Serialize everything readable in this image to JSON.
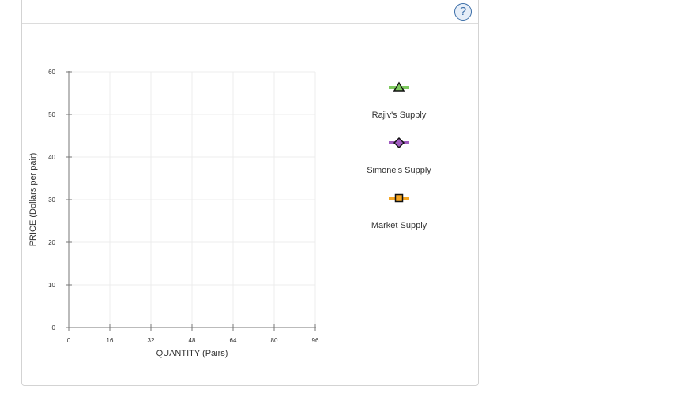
{
  "help": {
    "label": "?"
  },
  "chart_data": {
    "type": "line",
    "title": "",
    "xlabel": "QUANTITY (Pairs)",
    "ylabel": "PRICE (Dollars per pair)",
    "xlim": [
      0,
      96
    ],
    "ylim": [
      0,
      60
    ],
    "x_ticks": [
      0,
      16,
      32,
      48,
      64,
      80,
      96
    ],
    "y_ticks": [
      0,
      10,
      20,
      30,
      40,
      50,
      60
    ],
    "grid": true,
    "legend_placement": "right",
    "series": [
      {
        "name": "Rajiv's Supply",
        "marker": "triangle",
        "line_color": "#7dc95e",
        "marker_fill": "#7dc95e",
        "values": []
      },
      {
        "name": "Simone's Supply",
        "marker": "diamond",
        "line_color": "#a05cc0",
        "marker_fill": "#a05cc0",
        "values": []
      },
      {
        "name": "Market Supply",
        "marker": "square",
        "line_color": "#f5a623",
        "marker_fill": "#f5a623",
        "values": []
      }
    ]
  }
}
